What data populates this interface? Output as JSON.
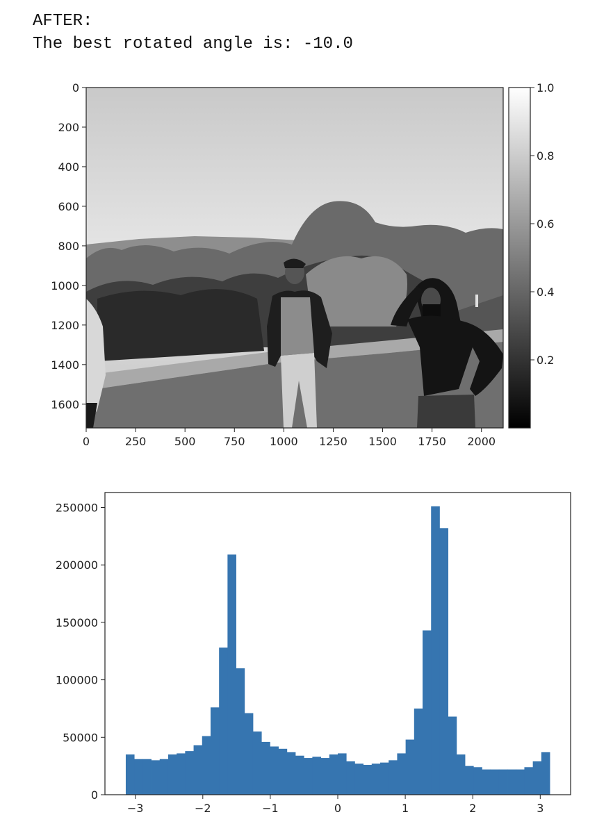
{
  "output": {
    "line1": "AFTER:",
    "line2": "The best rotated angle is: -10.0"
  },
  "image_panel": {
    "type": "image",
    "description_icon": "grayscale-photo-icon",
    "colormap": "gray",
    "x_ticks": [
      "0",
      "250",
      "500",
      "750",
      "1000",
      "1250",
      "1500",
      "1750",
      "2000"
    ],
    "x_tick_values": [
      0,
      250,
      500,
      750,
      1000,
      1250,
      1500,
      1750,
      2000
    ],
    "xlim": [
      0,
      2110
    ],
    "y_ticks": [
      "0",
      "200",
      "400",
      "600",
      "800",
      "1000",
      "1200",
      "1400",
      "1600"
    ],
    "y_tick_values": [
      0,
      200,
      400,
      600,
      800,
      1000,
      1200,
      1400,
      1600
    ],
    "ylim": [
      1720,
      0
    ],
    "colorbar": {
      "ticks": [
        "0.2",
        "0.4",
        "0.6",
        "0.8",
        "1.0"
      ],
      "tick_values": [
        0.2,
        0.4,
        0.6,
        0.8,
        1.0
      ],
      "range": [
        0.0,
        1.0
      ]
    }
  },
  "chart_data": {
    "type": "bar",
    "title": "",
    "xlabel": "",
    "ylabel": "",
    "color": "#3675b0",
    "xlim": [
      -3.45,
      3.45
    ],
    "ylim": [
      0,
      263000
    ],
    "x_ticks": [
      "−3",
      "−2",
      "−1",
      "0",
      "1",
      "2",
      "3"
    ],
    "x_tick_values": [
      -3,
      -2,
      -1,
      0,
      1,
      2,
      3
    ],
    "y_ticks": [
      "0",
      "50000",
      "100000",
      "150000",
      "200000",
      "250000"
    ],
    "y_tick_values": [
      0,
      50000,
      100000,
      150000,
      200000,
      250000
    ],
    "bin_range": [
      -3.1416,
      3.1416
    ],
    "values": [
      35000,
      31000,
      31000,
      30000,
      31000,
      35000,
      36000,
      38000,
      43000,
      51000,
      76000,
      128000,
      209000,
      110000,
      71000,
      55000,
      46000,
      42000,
      40000,
      37000,
      34000,
      32000,
      33000,
      32000,
      35000,
      36000,
      29000,
      27000,
      26000,
      27000,
      28000,
      30000,
      36000,
      48000,
      75000,
      143000,
      251000,
      232000,
      68000,
      35000,
      25000,
      24000,
      22000,
      22000,
      22000,
      22000,
      22000,
      24000,
      29000,
      37000
    ]
  }
}
